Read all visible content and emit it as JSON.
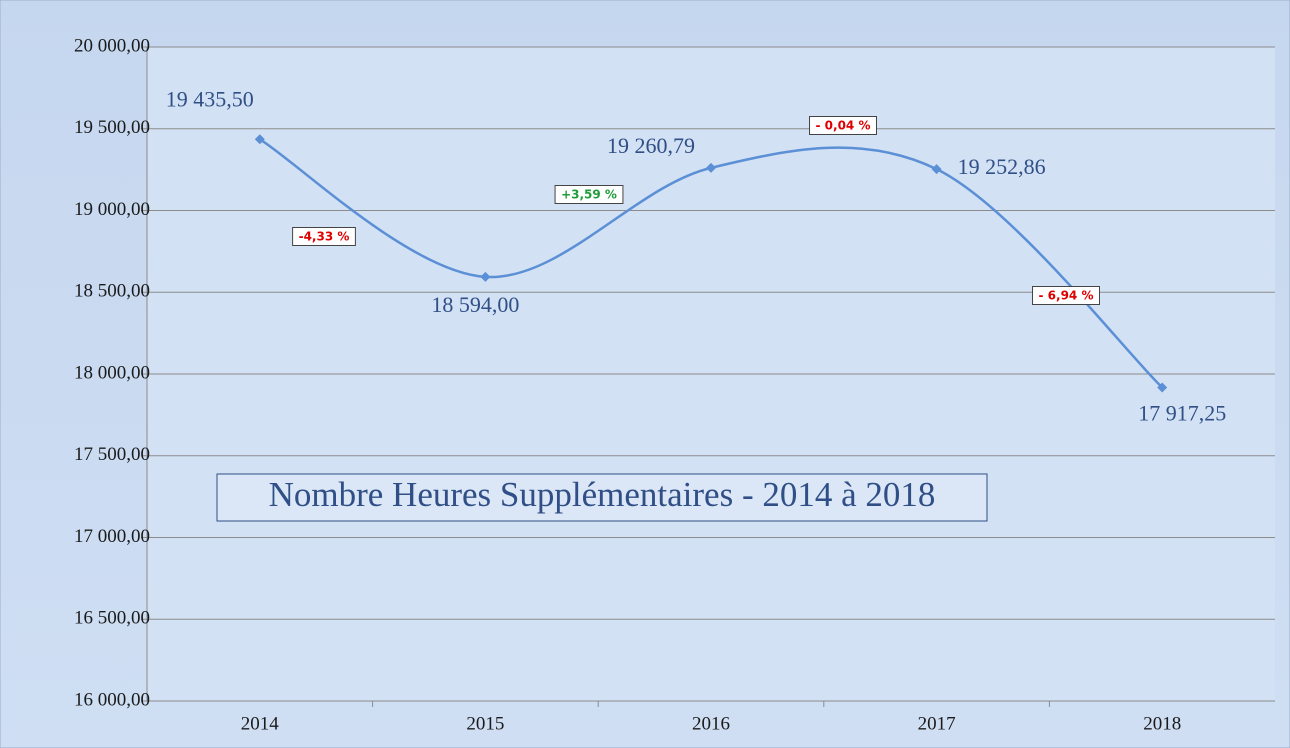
{
  "chart_data": {
    "type": "line",
    "title": "Nombre Heures Supplémentaires - 2014 à 2018",
    "categories": [
      "2014",
      "2015",
      "2016",
      "2017",
      "2018"
    ],
    "series": [
      {
        "name": "Nombre Heures Supplémentaires",
        "color": "#5b8fd6",
        "values": [
          19435.5,
          18594,
          19260.79,
          19252.86,
          17917.25
        ],
        "value_labels": [
          "19 435,50",
          "18 594,00",
          "19 260,79",
          "19 252,86",
          "17 917,25"
        ]
      }
    ],
    "annotations": [
      {
        "label": "-4,33 %",
        "color": "#e00000"
      },
      {
        "label": "+3,59 %",
        "color": "#1e9e3a"
      },
      {
        "label": "- 0,04 %",
        "color": "#e00000"
      },
      {
        "label": "- 6,94 %",
        "color": "#e00000"
      }
    ],
    "ylim": [
      16000,
      20000
    ],
    "yticks": [
      {
        "value": 16000,
        "label": "16 000,00"
      },
      {
        "value": 16500,
        "label": "16 500,00"
      },
      {
        "value": 17000,
        "label": "17 000,00"
      },
      {
        "value": 17500,
        "label": "17 500,00"
      },
      {
        "value": 18000,
        "label": "18 000,00"
      },
      {
        "value": 18500,
        "label": "18 500,00"
      },
      {
        "value": 19000,
        "label": "19 000,00"
      },
      {
        "value": 19500,
        "label": "19 500,00"
      },
      {
        "value": 20000,
        "label": "20 000,00"
      }
    ],
    "grid": true
  }
}
